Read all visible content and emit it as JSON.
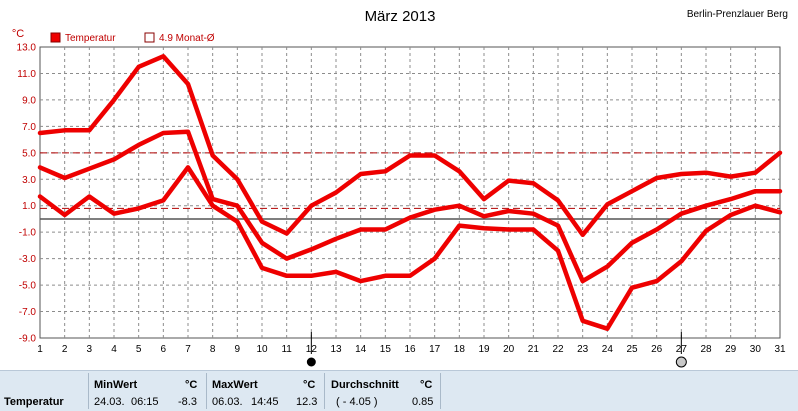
{
  "chart_data": {
    "type": "line",
    "title": "März 2013",
    "station": "Berlin-Prenzlauer Berg",
    "unit_label": "°C",
    "legend": [
      {
        "label": "Temperatur",
        "kind": "filled"
      },
      {
        "label": "4.9 Monat-Ø",
        "kind": "outline"
      }
    ],
    "x": [
      1,
      2,
      3,
      4,
      5,
      6,
      7,
      8,
      9,
      10,
      11,
      12,
      13,
      14,
      15,
      16,
      17,
      18,
      19,
      20,
      21,
      22,
      23,
      24,
      25,
      26,
      27,
      28,
      29,
      30,
      31
    ],
    "ylim": [
      -9.0,
      13.0
    ],
    "ytick_labels": [
      "13.0",
      "11.0",
      "9.0",
      "7.0",
      "5.0",
      "3.0",
      "1.0",
      "-1.0",
      "-3.0",
      "-5.0",
      "-7.0",
      "-9.0"
    ],
    "ytick_values": [
      13,
      11,
      9,
      7,
      5,
      3,
      1,
      -1,
      -3,
      -5,
      -7,
      -9
    ],
    "grid": true,
    "legend_position": "top-left",
    "reference_lines": {
      "monthly_mean": 4.9,
      "upper_dashed": 5.0,
      "lower_dashed": 0.8,
      "zero": 0.0
    },
    "moon_phases": [
      {
        "day": 12,
        "phase": "new"
      },
      {
        "day": 27,
        "phase": "full"
      }
    ],
    "color": "#ee0000",
    "series": [
      {
        "values": [
          6.5,
          6.7,
          6.7,
          9.0,
          11.5,
          12.3,
          10.2,
          4.8,
          3.0,
          -0.2,
          -1.1,
          1.0,
          2.0,
          3.4,
          3.6,
          4.8,
          4.8,
          3.6,
          1.5,
          2.9,
          2.7,
          1.4,
          -1.2,
          1.1,
          2.1,
          3.1,
          3.4,
          3.5,
          3.2,
          3.5,
          5.0
        ]
      },
      {
        "values": [
          1.7,
          0.3,
          1.7,
          0.4,
          0.8,
          1.4,
          3.9,
          1.0,
          -0.2,
          -3.7,
          -4.3,
          -4.3,
          -4.0,
          -4.7,
          -4.3,
          -4.3,
          -3.0,
          -0.5,
          -0.7,
          -0.8,
          -0.8,
          -2.4,
          -7.7,
          -8.3,
          -5.2,
          -4.7,
          -3.2,
          -0.9,
          0.3,
          1.0,
          0.5
        ]
      },
      {
        "values": [
          3.9,
          3.1,
          3.8,
          4.5,
          5.6,
          6.5,
          6.6,
          1.5,
          1.0,
          -1.8,
          -3.0,
          -2.3,
          -1.5,
          -0.8,
          -0.8,
          0.1,
          0.7,
          1.0,
          0.2,
          0.6,
          0.4,
          -0.5,
          -4.7,
          -3.6,
          -1.8,
          -0.8,
          0.4,
          1.0,
          1.5,
          2.1,
          2.1
        ]
      }
    ]
  },
  "stats": {
    "row_label": "Temperatur",
    "min": {
      "header": "MinWert",
      "unit": "°C",
      "date": "24.03.",
      "time": "06:15",
      "value": "-8.3"
    },
    "max": {
      "header": "MaxWert",
      "unit": "°C",
      "date": "06.03.",
      "time": "14:45",
      "value": "12.3"
    },
    "avg": {
      "header": "Durchschnitt",
      "unit": "°C",
      "range": "( - 4.05 )",
      "value": "0.85"
    }
  }
}
